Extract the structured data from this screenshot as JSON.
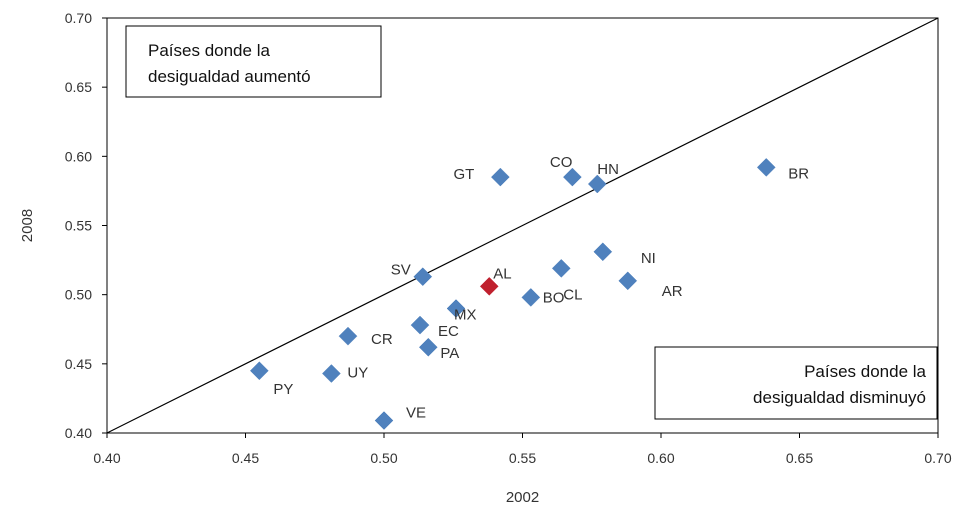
{
  "chart_data": {
    "type": "scatter",
    "title": "",
    "xlabel": "2002",
    "ylabel": "2008",
    "xlim": [
      0.4,
      0.7
    ],
    "ylim": [
      0.4,
      0.7
    ],
    "x_ticks": [
      "0.40",
      "0.45",
      "0.50",
      "0.55",
      "0.60",
      "0.65",
      "0.70"
    ],
    "y_ticks": [
      "0.40",
      "0.45",
      "0.50",
      "0.55",
      "0.60",
      "0.65",
      "0.70"
    ],
    "grid": false,
    "diagonal_line": true,
    "colors": {
      "default": "#4f81bd",
      "highlight": "#c0202e"
    },
    "points": [
      {
        "label": "BR",
        "x": 0.638,
        "y": 0.592
      },
      {
        "label": "GT",
        "x": 0.542,
        "y": 0.585
      },
      {
        "label": "CO",
        "x": 0.568,
        "y": 0.585
      },
      {
        "label": "HN",
        "x": 0.577,
        "y": 0.58
      },
      {
        "label": "NI",
        "x": 0.579,
        "y": 0.531
      },
      {
        "label": "CL",
        "x": 0.564,
        "y": 0.519
      },
      {
        "label": "AR",
        "x": 0.588,
        "y": 0.51
      },
      {
        "label": "SV",
        "x": 0.514,
        "y": 0.513
      },
      {
        "label": "AL",
        "x": 0.538,
        "y": 0.506,
        "highlight": true
      },
      {
        "label": "BO",
        "x": 0.553,
        "y": 0.498
      },
      {
        "label": "MX",
        "x": 0.526,
        "y": 0.49
      },
      {
        "label": "EC",
        "x": 0.513,
        "y": 0.478
      },
      {
        "label": "CR",
        "x": 0.487,
        "y": 0.47
      },
      {
        "label": "PA",
        "x": 0.516,
        "y": 0.462
      },
      {
        "label": "PY",
        "x": 0.455,
        "y": 0.445
      },
      {
        "label": "UY",
        "x": 0.481,
        "y": 0.443
      },
      {
        "label": "VE",
        "x": 0.5,
        "y": 0.409
      }
    ],
    "annotations": {
      "top_left": [
        "Países donde la",
        "desigualdad aumentó"
      ],
      "bottom_right": [
        "Países donde la",
        "desigualdad disminuyó"
      ]
    }
  }
}
